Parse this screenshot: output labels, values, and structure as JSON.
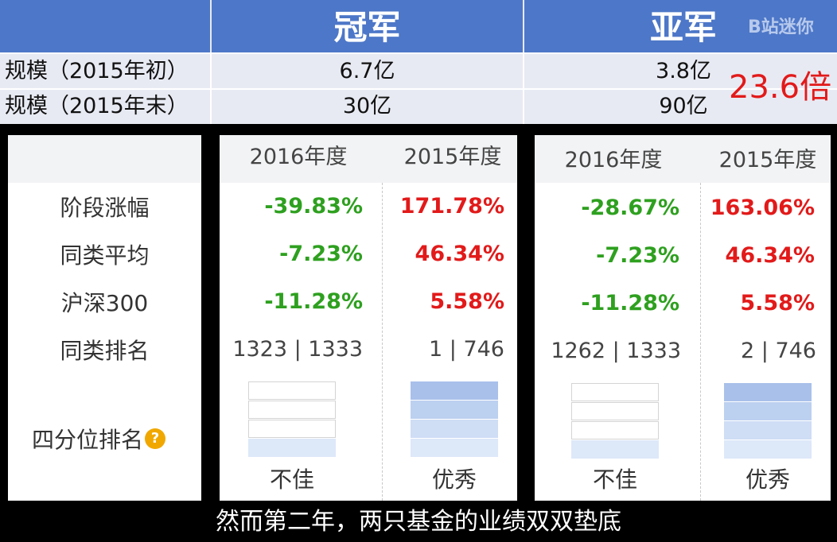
{
  "summary": {
    "header_champion": "冠军",
    "header_runner_up": "亚军",
    "watermark": "B站迷你",
    "rows": [
      {
        "label": "规模（2015年初）",
        "champion": "6.7亿",
        "runner_up": "3.8亿"
      },
      {
        "label": "规模（2015年末）",
        "champion": "30亿",
        "runner_up": "90亿"
      }
    ],
    "ratio": "23.6倍"
  },
  "performance": {
    "row_labels": [
      "阶段涨幅",
      "同类平均",
      "沪深300",
      "同类排名"
    ],
    "quartile_label": "四分位排名",
    "help_icon": "question-circle-icon",
    "funds": [
      {
        "col2016": {
          "year": "2016年度",
          "values": [
            "-39.83%",
            "-7.23%",
            "-11.28%"
          ],
          "rank": "1323 | 1333",
          "quartile": "不佳"
        },
        "col2015": {
          "year": "2015年度",
          "values": [
            "171.78%",
            "46.34%",
            "5.58%"
          ],
          "rank": "1 | 746",
          "quartile": "优秀"
        }
      },
      {
        "col2016": {
          "year": "2016年度",
          "values": [
            "-28.67%",
            "-7.23%",
            "-11.28%"
          ],
          "rank": "1262 | 1333",
          "quartile": "不佳"
        },
        "col2015": {
          "year": "2015年度",
          "values": [
            "163.06%",
            "46.34%",
            "5.58%"
          ],
          "rank": "2 | 746",
          "quartile": "优秀"
        }
      }
    ],
    "colors": {
      "negative": "#2ea01f",
      "positive": "#e21a1a",
      "quartile_fill": "#a9c0ea"
    }
  },
  "subtitle": "然而第二年，两只基金的业绩双双垫底"
}
